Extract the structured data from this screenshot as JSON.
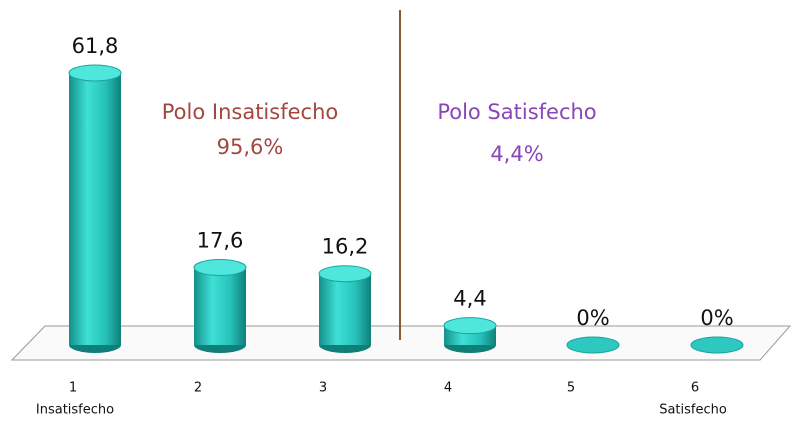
{
  "chart_data": {
    "type": "bar",
    "categories": [
      "1",
      "2",
      "3",
      "4",
      "5",
      "6"
    ],
    "values": [
      61.8,
      17.6,
      16.2,
      4.4,
      0,
      0
    ],
    "value_labels": [
      "61,8",
      "17,6",
      "16,2",
      "4,4",
      "0%",
      "0%"
    ],
    "color": "#2ec8c0",
    "left_pole_label": "Insatisfecho",
    "right_pole_label": "Satisfecho",
    "annotations": [
      {
        "text": "Polo Insatisfecho",
        "value_text": "95,6%",
        "color": "#a3473f"
      },
      {
        "text": "Polo Satisfecho",
        "value_text": "4,4%",
        "color": "#8a45b8"
      }
    ]
  }
}
